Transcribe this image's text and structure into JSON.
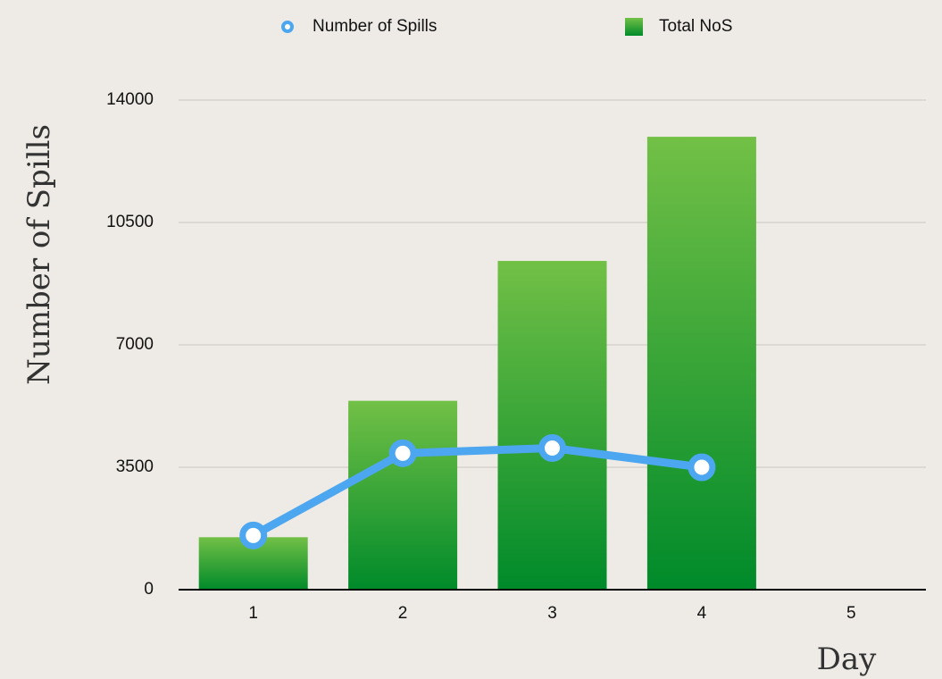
{
  "chart_data": {
    "type": "bar",
    "x_label": "Day",
    "y_label": "Number of Spills",
    "categories": [
      "1",
      "2",
      "3",
      "4",
      "5"
    ],
    "series": [
      {
        "name": "Number of Spills",
        "type": "line",
        "color": "#4da6f0",
        "values": [
          1550,
          3900,
          4050,
          3500,
          null
        ]
      },
      {
        "name": "Total NoS",
        "type": "bar",
        "color": "#2fa23a",
        "values": [
          1500,
          5400,
          9400,
          12950,
          null
        ]
      }
    ],
    "ylim": [
      0,
      14000
    ],
    "yticks": [
      0,
      3500,
      7000,
      10500,
      14000
    ],
    "grid": true,
    "legend": "top"
  }
}
